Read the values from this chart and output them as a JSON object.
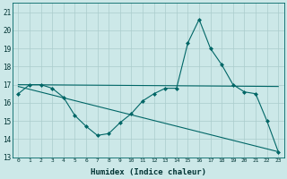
{
  "xlabel": "Humidex (Indice chaleur)",
  "background_color": "#cce8e8",
  "grid_color": "#aacccc",
  "line_color": "#006666",
  "xlim": [
    -0.5,
    23.5
  ],
  "ylim": [
    13,
    21.5
  ],
  "yticks": [
    13,
    14,
    15,
    16,
    17,
    18,
    19,
    20,
    21
  ],
  "xticks": [
    0,
    1,
    2,
    3,
    4,
    5,
    6,
    7,
    8,
    9,
    10,
    11,
    12,
    13,
    14,
    15,
    16,
    17,
    18,
    19,
    20,
    21,
    22,
    23
  ],
  "curve1_x": [
    0,
    1,
    2,
    3,
    4,
    5,
    6,
    7,
    8,
    9,
    10,
    11,
    12,
    13,
    14,
    15,
    16,
    17,
    18,
    19,
    20,
    21,
    22,
    23
  ],
  "curve1_y": [
    16.5,
    17.0,
    17.0,
    16.8,
    16.3,
    15.3,
    14.7,
    14.2,
    14.3,
    14.9,
    15.4,
    16.1,
    16.5,
    16.8,
    16.8,
    19.3,
    20.6,
    19.0,
    18.1,
    17.0,
    16.6,
    16.5,
    15.0,
    13.3
  ],
  "curve2_x": [
    0,
    23
  ],
  "curve2_y": [
    16.9,
    13.3
  ],
  "curve3_x": [
    0,
    23
  ],
  "curve3_y": [
    17.0,
    16.9
  ]
}
